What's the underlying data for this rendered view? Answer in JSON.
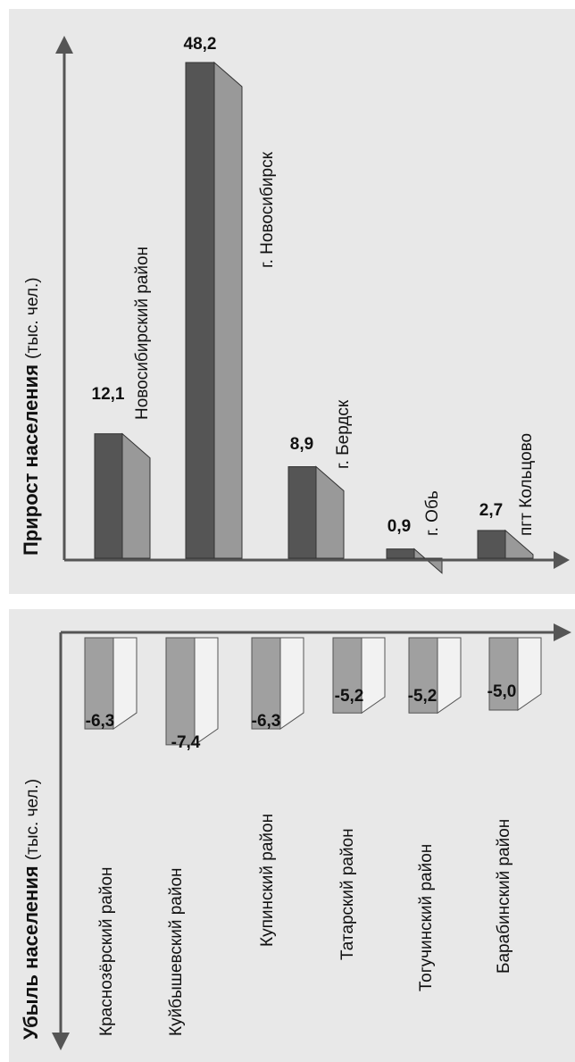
{
  "colors": {
    "panel_bg": "#e8e8e8",
    "axis": "#555555",
    "growth_bar_front": "#555555",
    "growth_bar_side": "#999999",
    "decline_bar_front": "#a0a0a0",
    "decline_bar_side": "#f2f2f2"
  },
  "chart_data": [
    {
      "type": "bar",
      "orientation": "rotated-90",
      "title": "",
      "ylabel_bold": "Прирост населения",
      "ylabel_unit": "(тыс. чел.)",
      "categories": [
        "Новосибирский район",
        "г. Новосибирск",
        "г. Бердск",
        "г. Обь",
        "пгт Кольцово"
      ],
      "values": [
        12.1,
        48.2,
        8.9,
        0.9,
        2.7
      ],
      "value_labels": [
        "12,1",
        "48,2",
        "8,9",
        "0,9",
        "2,7"
      ],
      "ylim": [
        0,
        52
      ]
    },
    {
      "type": "bar",
      "orientation": "rotated-90",
      "title": "",
      "ylabel_bold": "Убыль населения",
      "ylabel_unit": "(тыс. чел.)",
      "categories": [
        "Краснозёрский район",
        "Куйбышевский район",
        "Купинский район",
        "Татарский район",
        "Тогучинский район",
        "Барабинский район"
      ],
      "values": [
        -6.3,
        -7.4,
        -6.3,
        -5.2,
        -5.2,
        -5.0
      ],
      "value_labels": [
        "-6,3",
        "-7,4",
        "-6,3",
        "-5,2",
        "-5,2",
        "-5,0"
      ],
      "ylim": [
        -8,
        0
      ]
    }
  ]
}
